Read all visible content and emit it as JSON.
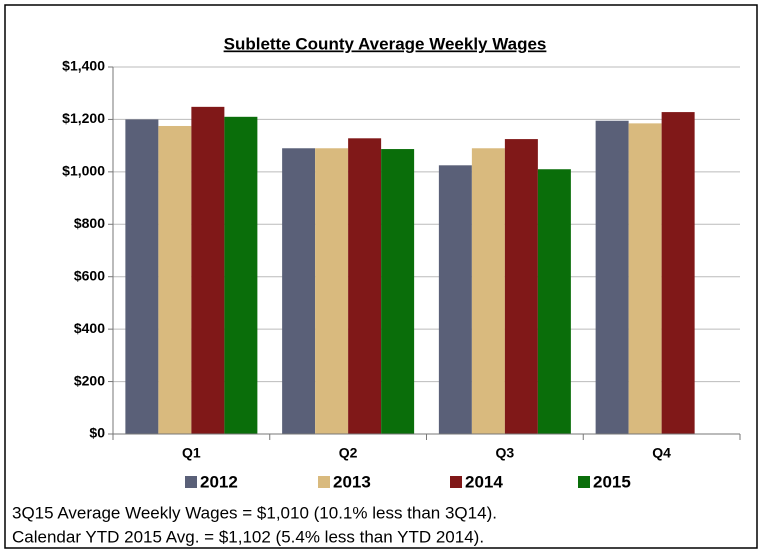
{
  "chart_data": {
    "type": "bar",
    "title": "Sublette County Average Weekly Wages",
    "categories": [
      "Q1",
      "Q2",
      "Q3",
      "Q4"
    ],
    "series": [
      {
        "name": "2012",
        "color": "#5a6078",
        "values": [
          1200,
          1090,
          1025,
          1195
        ]
      },
      {
        "name": "2013",
        "color": "#d9ba7e",
        "values": [
          1175,
          1090,
          1090,
          1185
        ]
      },
      {
        "name": "2014",
        "color": "#801818",
        "values": [
          1248,
          1128,
          1125,
          1228
        ]
      },
      {
        "name": "2015",
        "color": "#0a6e0a",
        "values": [
          1210,
          1087,
          1010,
          null
        ]
      }
    ],
    "ylim": [
      0,
      1400
    ],
    "yticks": [
      {
        "value": 0,
        "label": "$0"
      },
      {
        "value": 200,
        "label": "$200"
      },
      {
        "value": 400,
        "label": "$400"
      },
      {
        "value": 600,
        "label": "$600"
      },
      {
        "value": 800,
        "label": "$800"
      },
      {
        "value": 1000,
        "label": "$1,000"
      },
      {
        "value": 1200,
        "label": "$1,200"
      },
      {
        "value": 1400,
        "label": "$1,400"
      }
    ],
    "grid": true,
    "legend": "bottom",
    "notes": [
      "3Q15 Average Weekly Wages = $1,010 (10.1% less than 3Q14).",
      "Calendar YTD 2015 Avg. = $1,102 (5.4% less than YTD 2014)."
    ]
  }
}
